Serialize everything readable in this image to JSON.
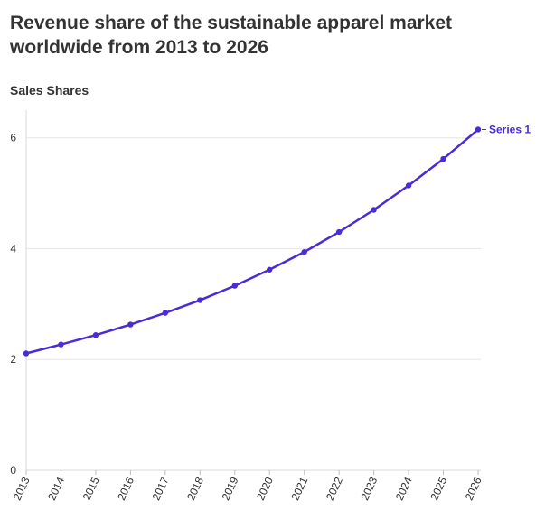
{
  "chart_data": {
    "type": "line",
    "title": "Revenue share of the sustainable apparel market worldwide from 2013 to 2026",
    "ylabel": "Sales Shares",
    "xlabel": "",
    "x": [
      "2013",
      "2014",
      "2015",
      "2016",
      "2017",
      "2018",
      "2019",
      "2020",
      "2021",
      "2022",
      "2023",
      "2024",
      "2025",
      "2026"
    ],
    "series": [
      {
        "name": "Series 1",
        "values": [
          2.11,
          2.27,
          2.44,
          2.63,
          2.84,
          3.07,
          3.33,
          3.62,
          3.94,
          4.3,
          4.7,
          5.14,
          5.62,
          6.15
        ],
        "color": "#4b2bd8"
      }
    ],
    "yticks": [
      0,
      2,
      4,
      6
    ],
    "ylim": [
      0,
      6.5
    ],
    "grid": true,
    "legend": "end-of-line label"
  }
}
